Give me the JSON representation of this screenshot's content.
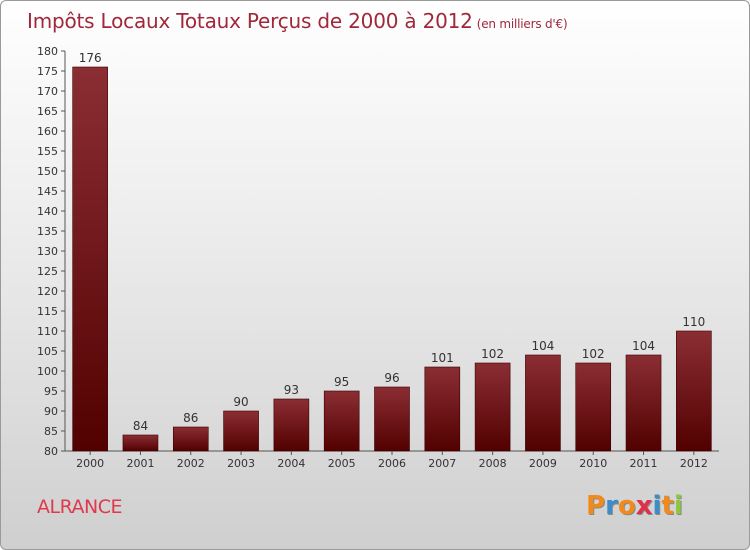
{
  "header": {
    "title": "Impôts Locaux Totaux Perçus de 2000 à 2012",
    "subtitle": "(en milliers d'€)"
  },
  "footer": {
    "commune": "ALRANCE",
    "logo": "Proxiti"
  },
  "colors": {
    "title": "#a0283a",
    "commune": "#e0384c",
    "bar_top": "#8b2e34",
    "bar_bottom": "#520000",
    "logo_letters": [
      "#f08a1c",
      "#3c8cc8",
      "#f08a1c",
      "#e0304a",
      "#3c8cc8",
      "#f08a1c",
      "#8cc83c"
    ]
  },
  "chart_data": {
    "type": "bar",
    "title": "Impôts Locaux Totaux Perçus de 2000 à 2012",
    "subtitle": "(en milliers d'€)",
    "categories": [
      "2000",
      "2001",
      "2002",
      "2003",
      "2004",
      "2005",
      "2006",
      "2007",
      "2008",
      "2009",
      "2010",
      "2011",
      "2012"
    ],
    "values": [
      176,
      84,
      86,
      90,
      93,
      95,
      96,
      101,
      102,
      104,
      102,
      104,
      110
    ],
    "xlabel": "",
    "ylabel": "",
    "ylim": [
      80,
      180
    ],
    "yticks": [
      80,
      85,
      90,
      95,
      100,
      105,
      110,
      115,
      120,
      125,
      130,
      135,
      140,
      145,
      150,
      155,
      160,
      165,
      170,
      175,
      180
    ],
    "grid": false,
    "legend": "none"
  }
}
